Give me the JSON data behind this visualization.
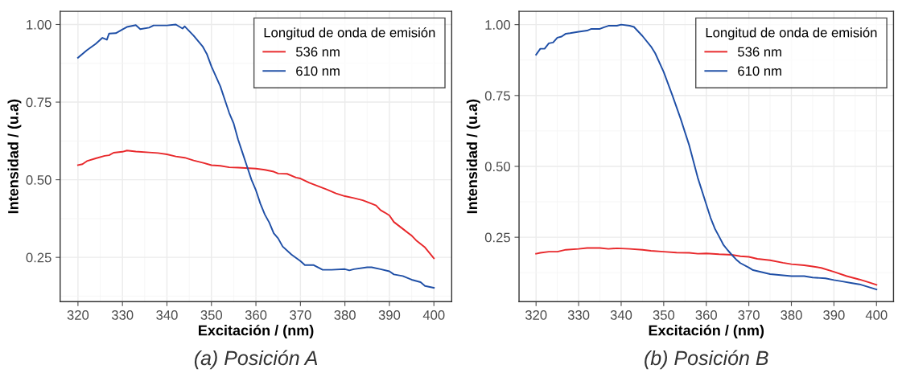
{
  "chart_data": [
    {
      "type": "line",
      "xlabel": "Excitación / (nm)",
      "ylabel": "Intensidad / (u.a)",
      "legend_title": "Longitud de onda de emisión",
      "legend": "top right",
      "grid": true,
      "xlim": [
        316,
        404
      ],
      "xticks": [
        320,
        330,
        340,
        350,
        360,
        370,
        380,
        390,
        400
      ],
      "ylim": [
        0.1075,
        1.0425
      ],
      "yticks": [
        {
          "value": 0.25,
          "label": "0.25"
        },
        {
          "value": 0.5,
          "label": "0.50"
        },
        {
          "value": 0.75,
          "label": "0.75"
        },
        {
          "value": 1.0,
          "label": "1.00"
        }
      ],
      "annotations": [
        "(a) Posición A"
      ],
      "series": [
        {
          "name": "536 nm",
          "color": "#e8282b",
          "x": [
            320,
            321,
            322,
            324,
            326,
            327,
            328,
            330,
            331,
            333,
            336,
            338,
            340,
            342,
            344,
            346,
            348,
            350,
            352,
            354,
            356,
            360,
            362,
            364,
            365,
            367,
            369,
            370,
            372,
            374,
            376,
            378,
            380,
            382,
            384,
            386,
            387,
            388,
            389,
            390,
            391,
            393,
            395,
            396,
            398,
            400
          ],
          "values": [
            0.547,
            0.55,
            0.56,
            0.569,
            0.577,
            0.579,
            0.587,
            0.59,
            0.594,
            0.591,
            0.588,
            0.586,
            0.582,
            0.575,
            0.571,
            0.562,
            0.555,
            0.547,
            0.545,
            0.54,
            0.539,
            0.536,
            0.532,
            0.526,
            0.52,
            0.519,
            0.507,
            0.504,
            0.49,
            0.479,
            0.468,
            0.456,
            0.447,
            0.441,
            0.434,
            0.423,
            0.417,
            0.402,
            0.394,
            0.385,
            0.364,
            0.342,
            0.32,
            0.305,
            0.282,
            0.247
          ]
        },
        {
          "name": "610 nm",
          "color": "#1f4fa6",
          "x": [
            320,
            322,
            324,
            325.5,
            326.5,
            327,
            328.5,
            330,
            331,
            333,
            334,
            336,
            337,
            340,
            342,
            343.5,
            344,
            346,
            348,
            349,
            350,
            352,
            353,
            354,
            355,
            356,
            357,
            358,
            359,
            360,
            361,
            362,
            363,
            364,
            365,
            366,
            368,
            370,
            371,
            373,
            375,
            377,
            380,
            381,
            382,
            385,
            386,
            388,
            390,
            391,
            393,
            395,
            397,
            398,
            400
          ],
          "values": [
            0.893,
            0.917,
            0.938,
            0.957,
            0.951,
            0.971,
            0.972,
            0.984,
            0.992,
            0.998,
            0.985,
            0.99,
            0.997,
            0.997,
            1.0,
            0.987,
            0.994,
            0.964,
            0.93,
            0.904,
            0.865,
            0.801,
            0.758,
            0.715,
            0.681,
            0.629,
            0.586,
            0.543,
            0.5,
            0.466,
            0.423,
            0.388,
            0.362,
            0.328,
            0.311,
            0.285,
            0.259,
            0.238,
            0.225,
            0.225,
            0.21,
            0.21,
            0.212,
            0.208,
            0.212,
            0.218,
            0.218,
            0.212,
            0.205,
            0.195,
            0.19,
            0.178,
            0.17,
            0.158,
            0.152
          ]
        }
      ]
    },
    {
      "type": "line",
      "xlabel": "Excitación / (nm)",
      "ylabel": "Intensidad / (u.a)",
      "legend_title": "Longitud de onda de emisión",
      "legend": "top right",
      "grid": true,
      "xlim": [
        316,
        404
      ],
      "xticks": [
        320,
        330,
        340,
        350,
        360,
        370,
        380,
        390,
        400
      ],
      "ylim": [
        0.023,
        1.047
      ],
      "yticks": [
        {
          "value": 0.25,
          "label": "0.25"
        },
        {
          "value": 0.5,
          "label": "0.50"
        },
        {
          "value": 0.75,
          "label": "0.75"
        },
        {
          "value": 1.0,
          "label": "1.00"
        }
      ],
      "annotations": [
        "(b) Posición B"
      ],
      "series": [
        {
          "name": "536 nm",
          "color": "#e8282b",
          "x": [
            320,
            321,
            323,
            325,
            327,
            330,
            332,
            335,
            337,
            339,
            342,
            345,
            347,
            350,
            353,
            356,
            358,
            360,
            363,
            366,
            368,
            370,
            372,
            375,
            378,
            380,
            383,
            385,
            387,
            390,
            393,
            396,
            398,
            400
          ],
          "values": [
            0.192,
            0.195,
            0.199,
            0.199,
            0.206,
            0.209,
            0.212,
            0.212,
            0.209,
            0.211,
            0.209,
            0.206,
            0.202,
            0.199,
            0.196,
            0.195,
            0.192,
            0.193,
            0.19,
            0.188,
            0.183,
            0.181,
            0.174,
            0.169,
            0.16,
            0.155,
            0.151,
            0.147,
            0.142,
            0.128,
            0.113,
            0.101,
            0.092,
            0.082
          ]
        },
        {
          "name": "610 nm",
          "color": "#1f4fa6",
          "x": [
            320,
            321,
            322,
            323,
            324,
            325,
            326,
            327,
            328,
            330,
            332,
            333,
            335,
            336,
            337,
            339,
            340,
            342,
            343,
            345,
            347,
            348,
            350,
            352,
            354,
            355,
            356,
            357,
            358,
            359,
            360,
            361,
            362,
            363,
            364,
            365,
            366,
            367,
            368,
            370,
            371,
            373,
            375,
            377,
            380,
            383,
            385,
            388,
            390,
            392,
            394,
            396,
            398,
            400
          ],
          "values": [
            0.894,
            0.915,
            0.915,
            0.934,
            0.937,
            0.954,
            0.958,
            0.968,
            0.97,
            0.975,
            0.979,
            0.985,
            0.985,
            0.991,
            0.996,
            0.996,
            1.0,
            0.996,
            0.992,
            0.96,
            0.923,
            0.899,
            0.833,
            0.752,
            0.667,
            0.62,
            0.574,
            0.517,
            0.46,
            0.413,
            0.366,
            0.319,
            0.281,
            0.253,
            0.224,
            0.205,
            0.188,
            0.172,
            0.159,
            0.143,
            0.134,
            0.127,
            0.12,
            0.117,
            0.113,
            0.113,
            0.108,
            0.105,
            0.099,
            0.094,
            0.089,
            0.084,
            0.075,
            0.066
          ]
        }
      ]
    }
  ]
}
